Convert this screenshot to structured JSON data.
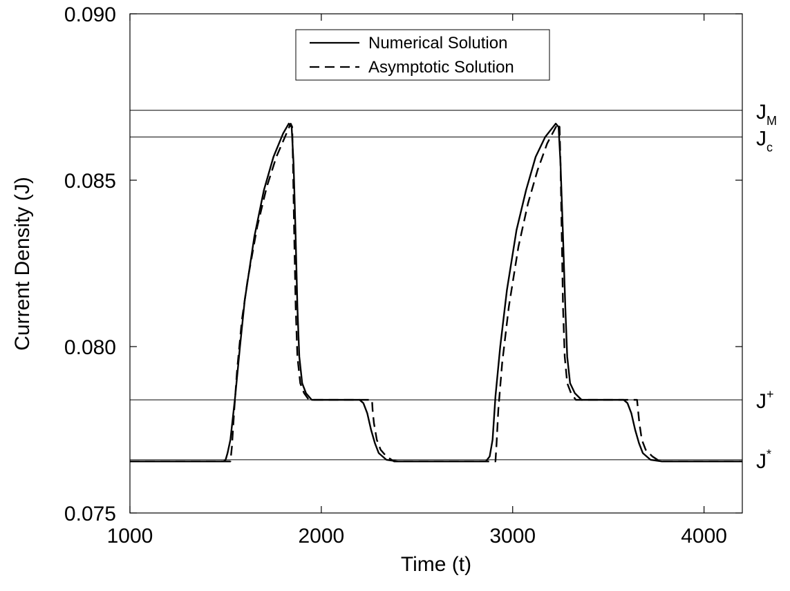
{
  "chart_data": {
    "type": "line",
    "xlabel": "Time (t)",
    "ylabel": "Current Density (J)",
    "xlim": [
      1000,
      4200
    ],
    "ylim": [
      0.075,
      0.09
    ],
    "x_ticks": [
      1000,
      2000,
      3000,
      4000
    ],
    "x_tick_labels": [
      "1000",
      "2000",
      "3000",
      "4000"
    ],
    "y_ticks": [
      0.075,
      0.08,
      0.085,
      0.09
    ],
    "y_tick_labels": [
      "0.075",
      "0.080",
      "0.085",
      "0.090"
    ],
    "grid": false,
    "legend": {
      "placement": "top-center"
    },
    "reference_lines": [
      {
        "id": "JM",
        "base": "J",
        "sub": "M",
        "sup": "",
        "y": 0.0871
      },
      {
        "id": "Jc",
        "base": "J",
        "sub": "c",
        "sup": "",
        "y": 0.0863
      },
      {
        "id": "Jplus",
        "base": "J",
        "sub": "",
        "sup": "+",
        "y": 0.0784
      },
      {
        "id": "Jstar",
        "base": "J",
        "sub": "",
        "sup": "*",
        "y": 0.0766
      }
    ],
    "series": [
      {
        "name": "Numerical Solution",
        "style": "solid",
        "color": "#000000",
        "points": [
          [
            1000,
            0.07655
          ],
          [
            1490,
            0.07655
          ],
          [
            1500,
            0.0766
          ],
          [
            1510,
            0.0768
          ],
          [
            1525,
            0.0772
          ],
          [
            1550,
            0.0785
          ],
          [
            1575,
            0.08
          ],
          [
            1600,
            0.0814
          ],
          [
            1650,
            0.0833
          ],
          [
            1700,
            0.0847
          ],
          [
            1750,
            0.0857
          ],
          [
            1800,
            0.0864
          ],
          [
            1830,
            0.0867
          ],
          [
            1845,
            0.0866
          ],
          [
            1855,
            0.0855
          ],
          [
            1865,
            0.0835
          ],
          [
            1875,
            0.0812
          ],
          [
            1885,
            0.0797
          ],
          [
            1900,
            0.0789
          ],
          [
            1920,
            0.0786
          ],
          [
            1950,
            0.0784
          ],
          [
            2000,
            0.0784
          ],
          [
            2200,
            0.0784
          ],
          [
            2220,
            0.0783
          ],
          [
            2240,
            0.078
          ],
          [
            2260,
            0.0775
          ],
          [
            2280,
            0.0771
          ],
          [
            2300,
            0.0768
          ],
          [
            2340,
            0.0766
          ],
          [
            2400,
            0.07655
          ],
          [
            2860,
            0.07655
          ],
          [
            2880,
            0.0767
          ],
          [
            2895,
            0.0772
          ],
          [
            2910,
            0.0785
          ],
          [
            2935,
            0.08
          ],
          [
            2970,
            0.0817
          ],
          [
            3020,
            0.0835
          ],
          [
            3070,
            0.0847
          ],
          [
            3120,
            0.0857
          ],
          [
            3170,
            0.0863
          ],
          [
            3225,
            0.0867
          ],
          [
            3240,
            0.0866
          ],
          [
            3250,
            0.0855
          ],
          [
            3262,
            0.0835
          ],
          [
            3275,
            0.0812
          ],
          [
            3285,
            0.0797
          ],
          [
            3300,
            0.0789
          ],
          [
            3325,
            0.0786
          ],
          [
            3360,
            0.0784
          ],
          [
            3580,
            0.0784
          ],
          [
            3600,
            0.0783
          ],
          [
            3620,
            0.078
          ],
          [
            3640,
            0.0775
          ],
          [
            3660,
            0.0771
          ],
          [
            3680,
            0.0768
          ],
          [
            3720,
            0.0766
          ],
          [
            3780,
            0.07655
          ],
          [
            4200,
            0.07655
          ]
        ]
      },
      {
        "name": "Asymptotic Solution",
        "style": "dashed",
        "color": "#000000",
        "points": [
          [
            1000,
            0.07655
          ],
          [
            1525,
            0.07655
          ],
          [
            1533,
            0.077
          ],
          [
            1545,
            0.0781
          ],
          [
            1560,
            0.0793
          ],
          [
            1585,
            0.0808
          ],
          [
            1615,
            0.082
          ],
          [
            1665,
            0.0836
          ],
          [
            1715,
            0.0848
          ],
          [
            1765,
            0.0857
          ],
          [
            1810,
            0.0863
          ],
          [
            1840,
            0.0867
          ],
          [
            1848,
            0.0866
          ],
          [
            1852,
            0.0855
          ],
          [
            1858,
            0.0835
          ],
          [
            1866,
            0.0812
          ],
          [
            1875,
            0.0797
          ],
          [
            1890,
            0.0789
          ],
          [
            1910,
            0.0786
          ],
          [
            1935,
            0.0784
          ],
          [
            2265,
            0.0784
          ],
          [
            2268,
            0.0781
          ],
          [
            2275,
            0.0777
          ],
          [
            2290,
            0.0772
          ],
          [
            2310,
            0.0769
          ],
          [
            2340,
            0.0767
          ],
          [
            2380,
            0.07655
          ],
          [
            2910,
            0.07655
          ],
          [
            2915,
            0.077
          ],
          [
            2925,
            0.0781
          ],
          [
            2945,
            0.0795
          ],
          [
            2980,
            0.0812
          ],
          [
            3030,
            0.083
          ],
          [
            3080,
            0.0843
          ],
          [
            3130,
            0.0853
          ],
          [
            3180,
            0.0861
          ],
          [
            3235,
            0.0867
          ],
          [
            3245,
            0.0866
          ],
          [
            3250,
            0.0855
          ],
          [
            3256,
            0.0835
          ],
          [
            3263,
            0.0812
          ],
          [
            3272,
            0.0797
          ],
          [
            3285,
            0.0789
          ],
          [
            3305,
            0.0786
          ],
          [
            3330,
            0.0784
          ],
          [
            3650,
            0.0784
          ],
          [
            3655,
            0.0781
          ],
          [
            3662,
            0.0777
          ],
          [
            3675,
            0.0772
          ],
          [
            3695,
            0.0769
          ],
          [
            3730,
            0.0767
          ],
          [
            3770,
            0.07655
          ],
          [
            4200,
            0.07655
          ]
        ]
      }
    ]
  }
}
